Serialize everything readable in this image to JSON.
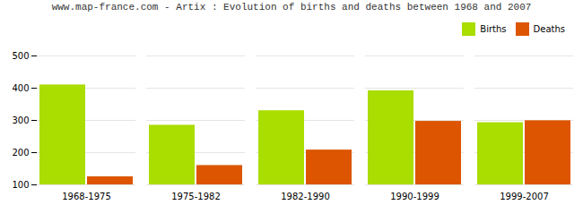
{
  "chart_data": {
    "type": "bar",
    "title": "www.map-france.com - Artix : Evolution of births and deaths between 1968 and 2007",
    "categories": [
      "1968-1975",
      "1975-1982",
      "1982-1990",
      "1990-1999",
      "1999-2007"
    ],
    "series": [
      {
        "name": "Births",
        "color": "#aadd00",
        "values": [
          410,
          285,
          330,
          392,
          293
        ]
      },
      {
        "name": "Deaths",
        "color": "#dd5500",
        "values": [
          125,
          160,
          208,
          297,
          299
        ]
      }
    ],
    "ylim": [
      100,
      500
    ],
    "yticks": [
      100,
      200,
      300,
      400,
      500
    ],
    "grid": true,
    "legend": "upper right"
  }
}
